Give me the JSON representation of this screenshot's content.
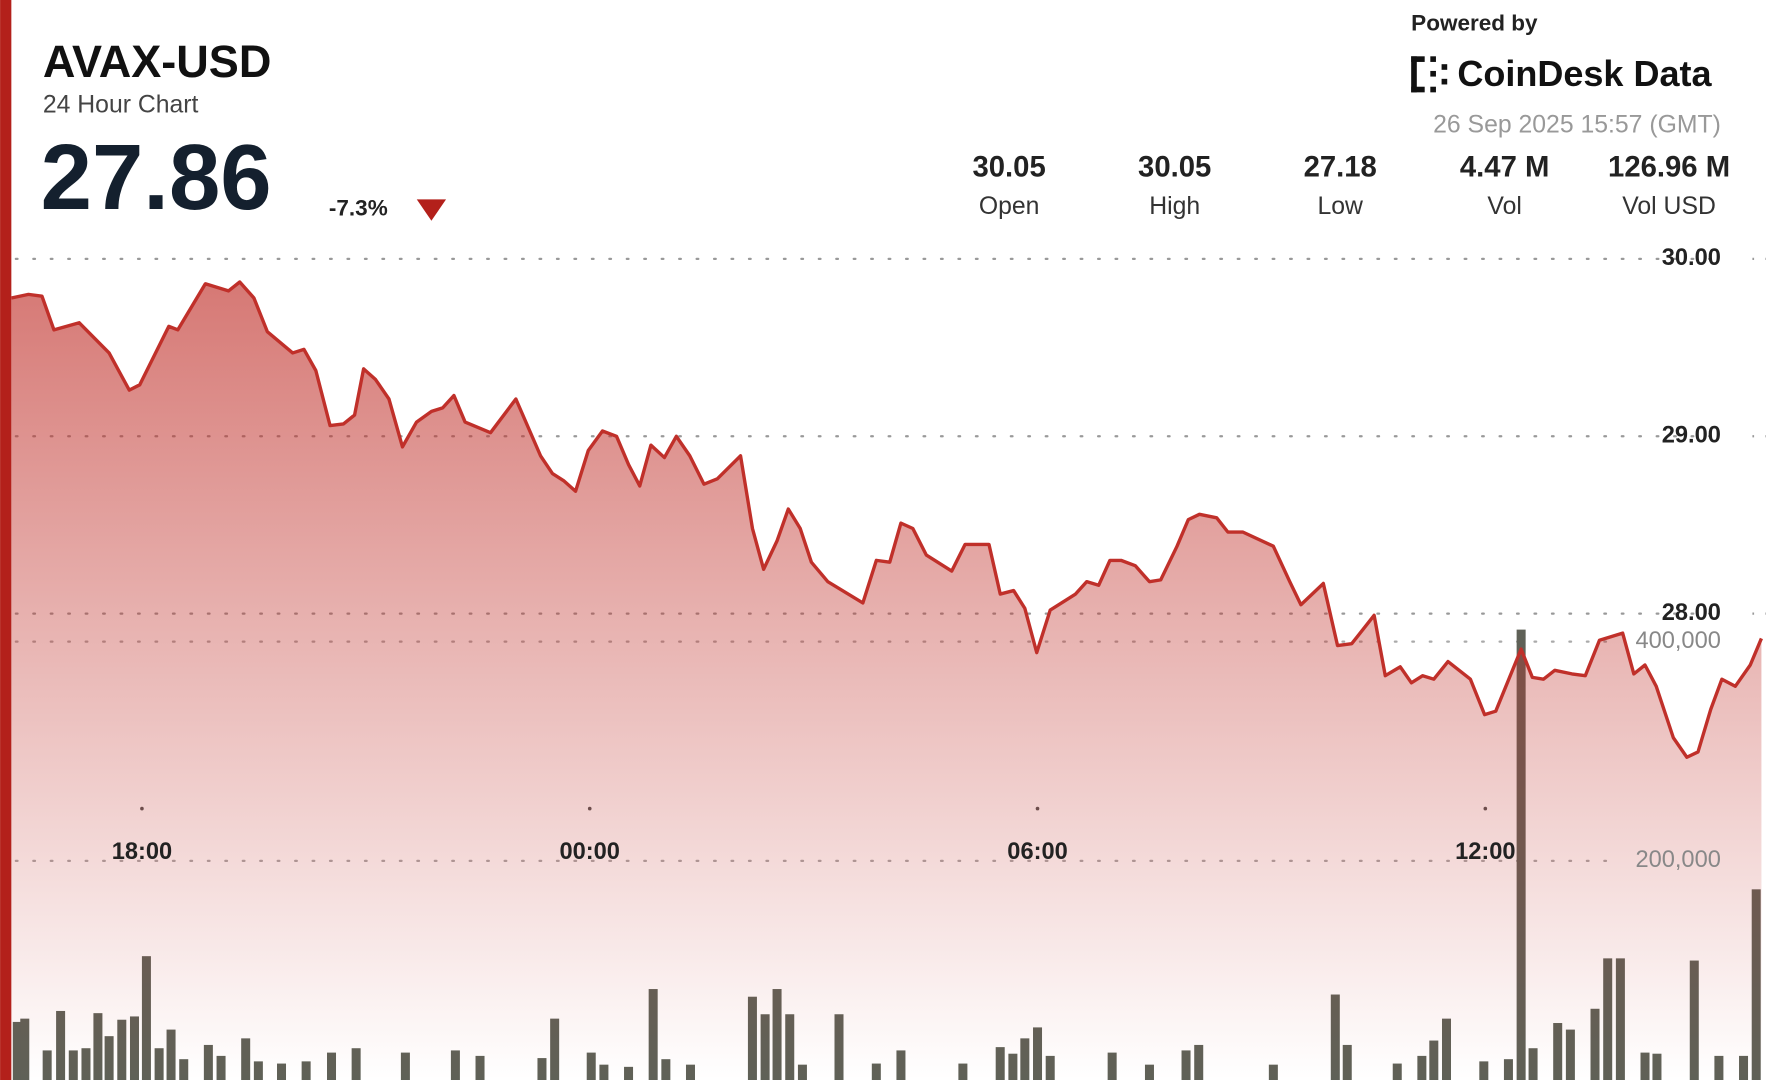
{
  "header": {
    "price": "27.86",
    "change": "-7.3%",
    "stats": [
      {
        "value": "30.05",
        "label": "Open"
      },
      {
        "value": "30.05",
        "label": "High"
      },
      {
        "value": "27.18",
        "label": "Low"
      },
      {
        "value": "4.47 M",
        "label": "Vol"
      },
      {
        "value": "126.96 M",
        "label": "Vol USD"
      }
    ],
    "powered_by": "Powered by",
    "brand": "CoinDesk Data",
    "timestamp": "26 Sep 2025 15:57 (GMT)"
  },
  "chart_data": {
    "type": "line",
    "title": "AVAX-USD",
    "subtitle": "24 Hour Chart",
    "xlim": [
      0.25,
      23.76
    ],
    "xticks": [
      {
        "value": 2,
        "label": "18:00"
      },
      {
        "value": 8,
        "label": "00:00"
      },
      {
        "value": 14,
        "label": "06:00"
      },
      {
        "value": 20,
        "label": "12:00"
      }
    ],
    "ylim": [
      25.37,
      30.19
    ],
    "yticks": [
      {
        "value": 28,
        "label": "28.00"
      },
      {
        "value": 29,
        "label": "29.00"
      },
      {
        "value": 30,
        "label": "30.00"
      }
    ],
    "y2lim": [
      0,
      780000
    ],
    "y2ticks": [
      {
        "value": 200000,
        "label": "200,000"
      },
      {
        "value": 400000,
        "label": "400,000"
      }
    ],
    "grid": true,
    "series": [
      {
        "type": "line",
        "color": "#c0302a",
        "x": [
          0.25,
          0.48,
          0.66,
          0.82,
          1.16,
          1.56,
          1.83,
          1.97,
          2.36,
          2.48,
          2.85,
          3.16,
          3.31,
          3.5,
          3.68,
          4.02,
          4.17,
          4.33,
          4.52,
          4.7,
          4.85,
          4.97,
          5.13,
          5.31,
          5.49,
          5.68,
          5.88,
          6.03,
          6.18,
          6.33,
          6.67,
          7.01,
          7.34,
          7.5,
          7.65,
          7.81,
          7.98,
          8.17,
          8.36,
          8.52,
          8.67,
          8.82,
          9.0,
          9.16,
          9.34,
          9.53,
          9.71,
          10.02,
          10.18,
          10.33,
          10.51,
          10.66,
          10.82,
          10.97,
          11.19,
          11.66,
          11.84,
          12.02,
          12.17,
          12.33,
          12.51,
          12.85,
          13.03,
          13.35,
          13.5,
          13.68,
          13.83,
          13.99,
          14.17,
          14.51,
          14.66,
          14.82,
          14.97,
          15.12,
          15.31,
          15.5,
          15.65,
          15.87,
          16.02,
          16.17,
          16.4,
          16.55,
          16.75,
          17.16,
          17.38,
          17.53,
          17.83,
          18.02,
          18.21,
          18.51,
          18.66,
          18.86,
          19.01,
          19.16,
          19.31,
          19.5,
          19.8,
          19.99,
          20.14,
          20.48,
          20.63,
          20.78,
          20.93,
          21.16,
          21.34,
          21.53,
          21.84,
          21.99,
          22.14,
          22.29,
          22.52,
          22.7,
          22.85,
          23.02,
          23.17,
          23.35,
          23.55,
          23.7
        ],
        "values": [
          29.78,
          29.8,
          29.79,
          29.6,
          29.64,
          29.47,
          29.26,
          29.29,
          29.62,
          29.6,
          29.86,
          29.82,
          29.87,
          29.78,
          29.59,
          29.47,
          29.49,
          29.37,
          29.06,
          29.07,
          29.12,
          29.38,
          29.32,
          29.21,
          28.94,
          29.08,
          29.14,
          29.16,
          29.23,
          29.08,
          29.02,
          29.21,
          28.89,
          28.79,
          28.75,
          28.69,
          28.92,
          29.03,
          29.0,
          28.84,
          28.72,
          28.95,
          28.88,
          29.0,
          28.89,
          28.73,
          28.76,
          28.89,
          28.48,
          28.25,
          28.41,
          28.59,
          28.48,
          28.29,
          28.18,
          28.06,
          28.3,
          28.29,
          28.51,
          28.48,
          28.33,
          28.24,
          28.39,
          28.39,
          28.11,
          28.13,
          28.03,
          27.78,
          28.02,
          28.11,
          28.18,
          28.16,
          28.3,
          28.3,
          28.27,
          28.18,
          28.19,
          28.38,
          28.53,
          28.56,
          28.54,
          28.46,
          28.46,
          28.38,
          28.18,
          28.05,
          28.17,
          27.82,
          27.83,
          27.99,
          27.65,
          27.7,
          27.61,
          27.65,
          27.63,
          27.73,
          27.63,
          27.43,
          27.45,
          27.8,
          27.64,
          27.63,
          27.68,
          27.66,
          27.65,
          27.85,
          27.89,
          27.66,
          27.71,
          27.59,
          27.3,
          27.19,
          27.22,
          27.46,
          27.63,
          27.59,
          27.71,
          27.86
        ]
      },
      {
        "type": "bar",
        "axis": "y2",
        "color": "#5f6157",
        "x": [
          0.33,
          0.43,
          0.73,
          0.91,
          1.08,
          1.25,
          1.41,
          1.56,
          1.73,
          1.9,
          2.06,
          2.23,
          2.39,
          2.56,
          2.89,
          3.06,
          3.39,
          3.56,
          3.87,
          4.2,
          4.54,
          4.87,
          5.53,
          6.2,
          6.53,
          7.36,
          7.53,
          8.02,
          8.19,
          8.52,
          8.85,
          9.02,
          9.35,
          10.18,
          10.35,
          10.51,
          10.68,
          10.85,
          11.34,
          11.84,
          12.17,
          13.0,
          13.5,
          13.67,
          13.83,
          14.0,
          14.17,
          15.0,
          15.5,
          15.99,
          16.16,
          17.16,
          17.99,
          18.15,
          18.82,
          19.15,
          19.31,
          19.48,
          19.98,
          20.31,
          20.48,
          20.64,
          20.97,
          21.14,
          21.47,
          21.64,
          21.81,
          22.14,
          22.3,
          22.8,
          23.13,
          23.46,
          23.63
        ],
        "values": [
          53000,
          56000,
          27000,
          63000,
          27000,
          29000,
          61000,
          40000,
          55000,
          58000,
          113000,
          29000,
          46000,
          19000,
          32000,
          22000,
          38000,
          17000,
          15000,
          17000,
          25000,
          29000,
          25000,
          27000,
          22000,
          20000,
          56000,
          25000,
          14000,
          12000,
          83000,
          19000,
          14000,
          76000,
          60000,
          83000,
          60000,
          14000,
          60000,
          15000,
          27000,
          15000,
          30000,
          24000,
          38000,
          48000,
          22000,
          25000,
          14000,
          27000,
          32000,
          14000,
          78000,
          32000,
          15000,
          22000,
          36000,
          56000,
          17000,
          19000,
          411000,
          29000,
          52000,
          46000,
          65000,
          111000,
          111000,
          25000,
          24000,
          109000,
          22000,
          22000,
          174000
        ]
      }
    ]
  }
}
